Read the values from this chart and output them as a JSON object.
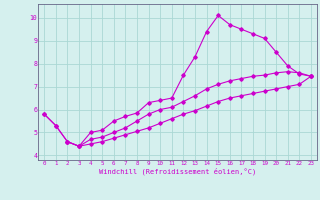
{
  "background_color": "#d5f0ee",
  "grid_color": "#aad8d4",
  "line_color": "#cc00cc",
  "spine_color": "#666688",
  "xlim": [
    -0.5,
    23.5
  ],
  "ylim": [
    3.8,
    10.6
  ],
  "xticks": [
    0,
    1,
    2,
    3,
    4,
    5,
    6,
    7,
    8,
    9,
    10,
    11,
    12,
    13,
    14,
    15,
    16,
    17,
    18,
    19,
    20,
    21,
    22,
    23
  ],
  "yticks": [
    4,
    5,
    6,
    7,
    8,
    9,
    10
  ],
  "xlabel": "Windchill (Refroidissement éolien,°C)",
  "series1_x": [
    0,
    1,
    2,
    3,
    4,
    5,
    6,
    7,
    8,
    9,
    10,
    11,
    12,
    13,
    14,
    15,
    16,
    17,
    18,
    19,
    20,
    21,
    22,
    23
  ],
  "series1_y": [
    5.8,
    5.3,
    4.6,
    4.4,
    5.0,
    5.1,
    5.5,
    5.7,
    5.85,
    6.3,
    6.4,
    6.5,
    7.5,
    8.3,
    9.4,
    10.1,
    9.7,
    9.5,
    9.3,
    9.1,
    8.5,
    7.9,
    7.55,
    7.45
  ],
  "series2_x": [
    0,
    1,
    2,
    3,
    4,
    5,
    6,
    7,
    8,
    9,
    10,
    11,
    12,
    13,
    14,
    15,
    16,
    17,
    18,
    19,
    20,
    21,
    22,
    23
  ],
  "series2_y": [
    5.8,
    5.3,
    4.6,
    4.4,
    4.7,
    4.8,
    5.0,
    5.2,
    5.5,
    5.8,
    6.0,
    6.1,
    6.35,
    6.6,
    6.9,
    7.1,
    7.25,
    7.35,
    7.45,
    7.5,
    7.6,
    7.65,
    7.6,
    7.45
  ],
  "series3_x": [
    2,
    3,
    4,
    5,
    6,
    7,
    8,
    9,
    10,
    11,
    12,
    13,
    14,
    15,
    16,
    17,
    18,
    19,
    20,
    21,
    22,
    23
  ],
  "series3_y": [
    4.6,
    4.4,
    4.5,
    4.6,
    4.75,
    4.9,
    5.05,
    5.2,
    5.4,
    5.6,
    5.8,
    5.95,
    6.15,
    6.35,
    6.5,
    6.6,
    6.7,
    6.8,
    6.9,
    7.0,
    7.1,
    7.45
  ],
  "marker": "D",
  "marker_size": 1.8,
  "line_width": 0.8,
  "tick_fontsize": 4.2,
  "xlabel_fontsize": 5.0
}
